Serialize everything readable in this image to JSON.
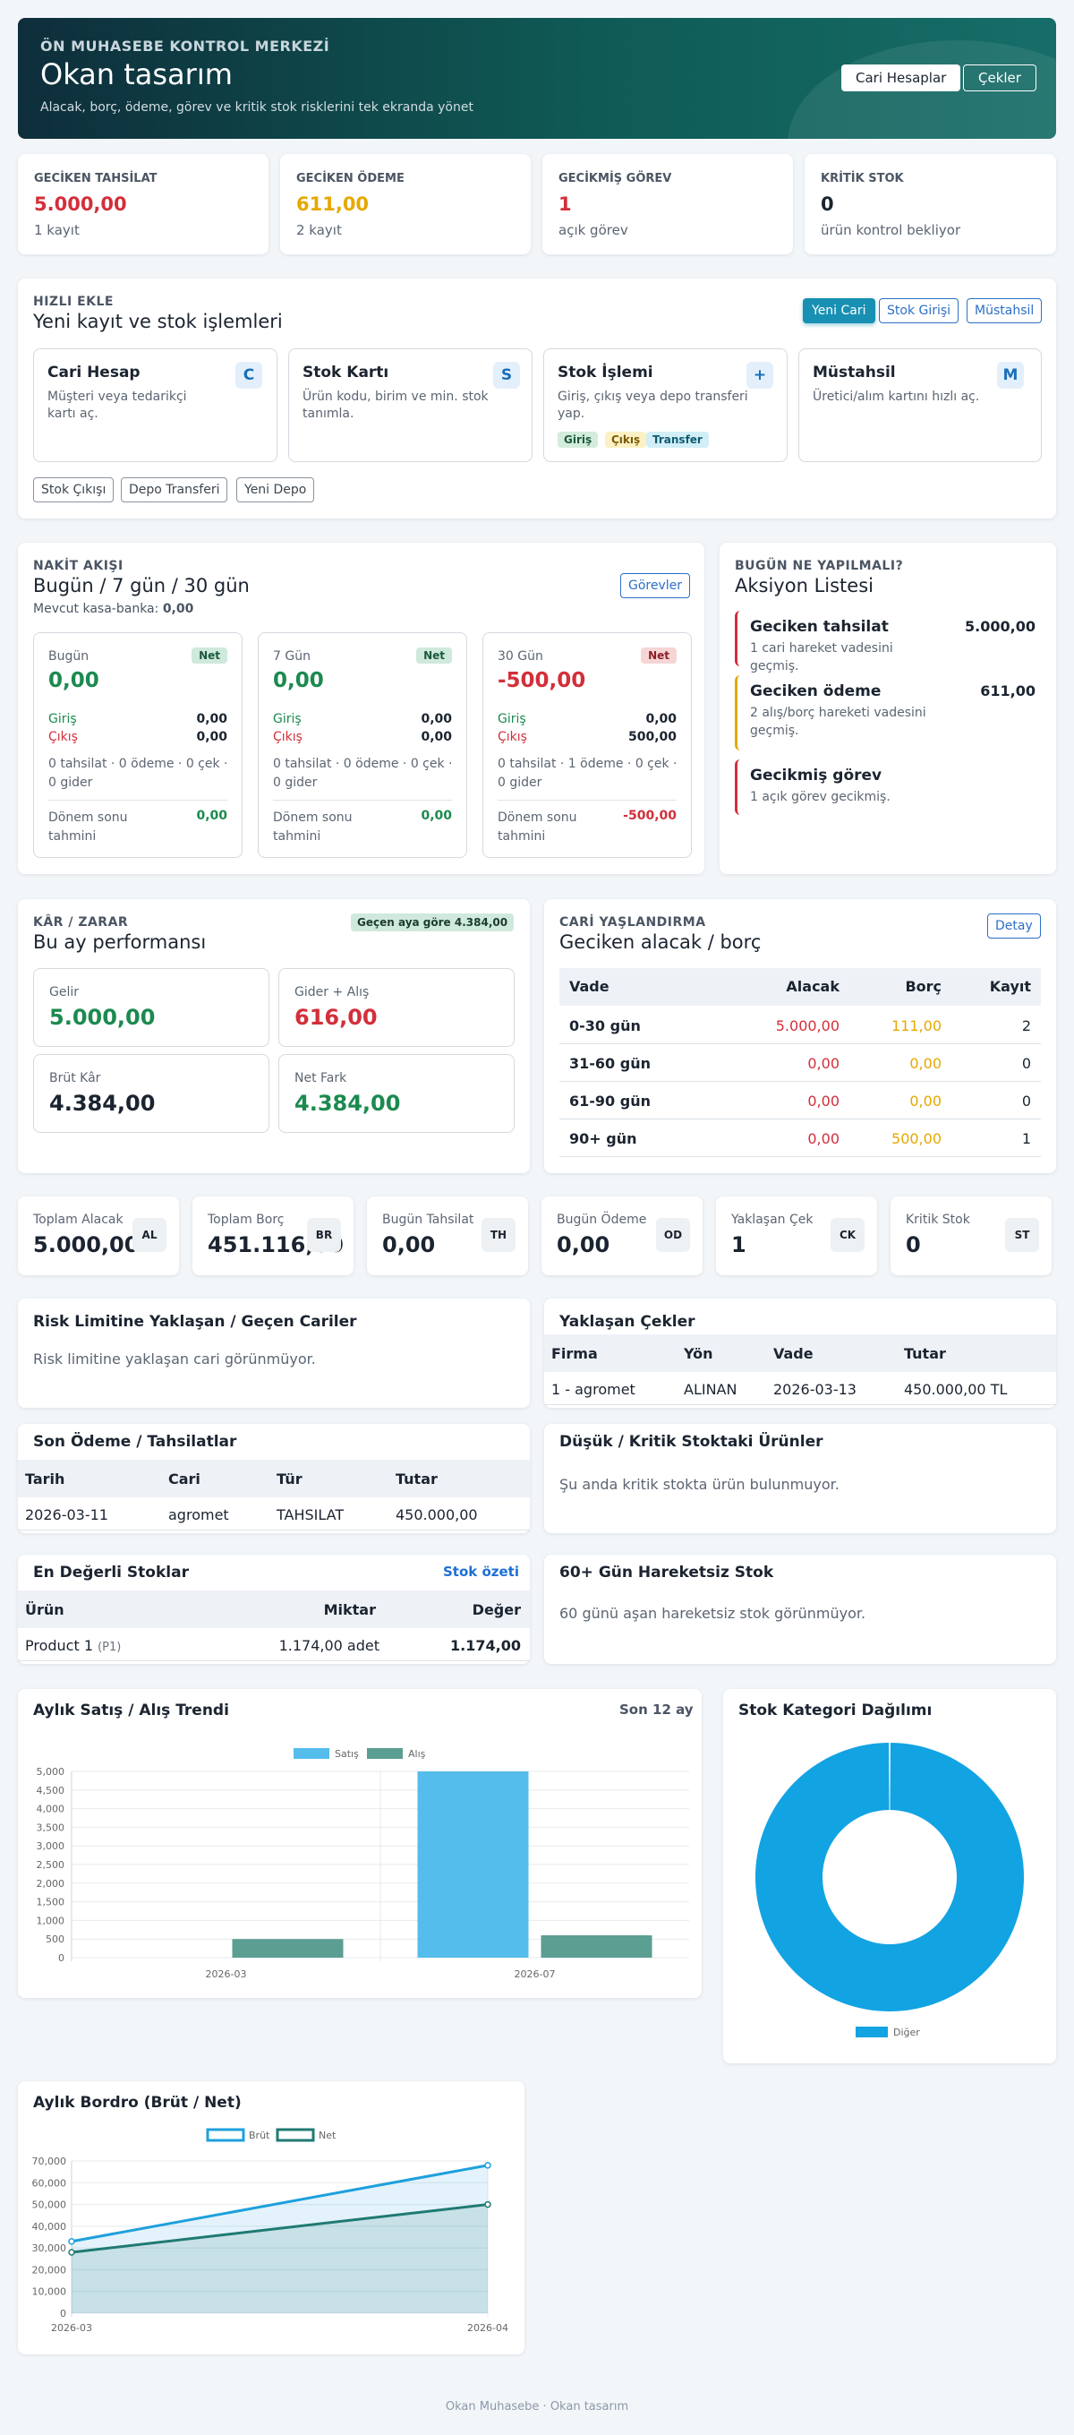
{
  "hero": {
    "kicker": "ÖN MUHASEBE KONTROL MERKEZİ",
    "title": "Okan tasarım",
    "subtitle": "Alacak, borç, ödeme, görev ve kritik stok risklerini tek ekranda yönet",
    "btn_accounts": "Cari Hesaplar",
    "btn_checks": "Çekler"
  },
  "alerts": [
    {
      "label": "GECİKEN TAHSİLAT",
      "value": "5.000,00",
      "sub": "1 kayıt"
    },
    {
      "label": "GECİKEN ÖDEME",
      "value": "611,00",
      "sub": "2 kayıt"
    },
    {
      "label": "GECİKMİŞ GÖREV",
      "value": "1",
      "sub": "açık görev"
    },
    {
      "label": "KRİTİK STOK",
      "value": "0",
      "sub": "ürün kontrol bekliyor"
    }
  ],
  "quick": {
    "kicker": "HIZLI EKLE",
    "title": "Yeni kayıt ve stok işlemleri",
    "btn_new_account": "Yeni Cari",
    "btn_stock_in": "Stok Girişi",
    "btn_producer": "Müstahsil",
    "cards": [
      {
        "title": "Cari Hesap",
        "desc": "Müşteri veya tedarikçi kartı aç.",
        "badge": "C"
      },
      {
        "title": "Stok Kartı",
        "desc": "Ürün kodu, birim ve min. stok tanımla.",
        "badge": "S"
      },
      {
        "title": "Stok İşlemi",
        "desc": "Giriş, çıkış veya depo transferi yap.",
        "badge": "+"
      },
      {
        "title": "Müstahsil",
        "desc": "Üretici/alım kartını hızlı aç.",
        "badge": "M"
      }
    ],
    "tags": [
      "Giriş",
      "Çıkış",
      "Transfer"
    ],
    "btn_stock_out": "Stok Çıkışı",
    "btn_transfer": "Depo Transferi",
    "btn_new_depot": "Yeni Depo"
  },
  "cash": {
    "kicker": "NAKİT AKIŞI",
    "title": "Bugün / 7 gün / 30 gün",
    "balance_label": "Mevcut kasa-banka:",
    "balance_value": "0,00",
    "btn_tasks": "Görevler",
    "in_label": "Giriş",
    "out_label": "Çıkış",
    "forecast_label": "Dönem sonu tahmini",
    "net_label": "Net",
    "periods": [
      {
        "name": "Bugün",
        "net": "0,00",
        "in": "0,00",
        "out": "0,00",
        "detail": "0 tahsilat · 0 ödeme · 0 çek · 0 gider",
        "forecast": "0,00"
      },
      {
        "name": "7 Gün",
        "net": "0,00",
        "in": "0,00",
        "out": "0,00",
        "detail": "0 tahsilat · 0 ödeme · 0 çek · 0 gider",
        "forecast": "0,00"
      },
      {
        "name": "30 Gün",
        "net": "-500,00",
        "in": "0,00",
        "out": "500,00",
        "detail": "0 tahsilat · 1 ödeme · 0 çek · 0 gider",
        "forecast": "-500,00"
      }
    ]
  },
  "actions": {
    "kicker": "BUGÜN NE YAPILMALI?",
    "title": "Aksiyon Listesi",
    "items": [
      {
        "title": "Geciken tahsilat",
        "desc": "1 cari hareket vadesini geçmiş.",
        "amount": "5.000,00",
        "color": "#d32f3a"
      },
      {
        "title": "Geciken ödeme",
        "desc": "2 alış/borç hareketi vadesini geçmiş.",
        "amount": "611,00",
        "color": "#e6a800"
      },
      {
        "title": "Gecikmiş görev",
        "desc": "1 açık görev gecikmiş.",
        "amount": "",
        "color": "#d32f3a"
      }
    ]
  },
  "pnl": {
    "kicker": "KÂR / ZARAR",
    "title": "Bu ay performansı",
    "badge": "Geçen aya göre 4.384,00",
    "boxes": [
      {
        "label": "Gelir",
        "value": "5.000,00"
      },
      {
        "label": "Gider + Alış",
        "value": "616,00"
      },
      {
        "label": "Brüt Kâr",
        "value": "4.384,00"
      },
      {
        "label": "Net Fark",
        "value": "4.384,00"
      }
    ]
  },
  "aging": {
    "kicker": "CARİ YAŞLANDIRMA",
    "title": "Geciken alacak / borç",
    "btn_detail": "Detay",
    "headers": [
      "Vade",
      "Alacak",
      "Borç",
      "Kayıt"
    ],
    "rows": [
      [
        "0-30 gün",
        "5.000,00",
        "111,00",
        "2"
      ],
      [
        "31-60 gün",
        "0,00",
        "0,00",
        "0"
      ],
      [
        "61-90 gün",
        "0,00",
        "0,00",
        "0"
      ],
      [
        "90+ gün",
        "0,00",
        "500,00",
        "1"
      ]
    ]
  },
  "stats": [
    {
      "label": "Toplam Alacak",
      "value": "5.000,00",
      "code": "AL"
    },
    {
      "label": "Toplam Borç",
      "value": "451.116,00",
      "code": "BR"
    },
    {
      "label": "Bugün Tahsilat",
      "value": "0,00",
      "code": "TH"
    },
    {
      "label": "Bugün Ödeme",
      "value": "0,00",
      "code": "OD"
    },
    {
      "label": "Yaklaşan Çek",
      "value": "1",
      "code": "CK"
    },
    {
      "label": "Kritik Stok",
      "value": "0",
      "code": "ST"
    }
  ],
  "risk": {
    "title": "Risk Limitine Yaklaşan / Geçen Cariler",
    "empty": "Risk limitine yaklaşan cari görünmüyor."
  },
  "checks": {
    "title": "Yaklaşan Çekler",
    "headers": [
      "Firma",
      "Yön",
      "Vade",
      "Tutar"
    ],
    "rows": [
      [
        "1 - agromet",
        "ALINAN",
        "2026-03-13",
        "450.000,00 TL"
      ]
    ]
  },
  "payments": {
    "title": "Son Ödeme / Tahsilatlar",
    "headers": [
      "Tarih",
      "Cari",
      "Tür",
      "Tutar"
    ],
    "rows": [
      [
        "2026-03-11",
        "agromet",
        "TAHSILAT",
        "450.000,00"
      ]
    ]
  },
  "lowstock": {
    "title": "Düşük / Kritik Stoktaki Ürünler",
    "empty": "Şu anda kritik stokta ürün bulunmuyor."
  },
  "valuable": {
    "title": "En Değerli Stoklar",
    "link": "Stok özeti",
    "headers": [
      "Ürün",
      "Miktar",
      "Değer"
    ],
    "rows": [
      {
        "name": "Product 1",
        "code": "(P1)",
        "qty": "1.174,00 adet",
        "value": "1.174,00"
      }
    ]
  },
  "idle": {
    "title": "60+ Gün Hareketsiz Stok",
    "empty": "60 günü aşan hareketsiz stok görünmüyor."
  },
  "trend": {
    "title": "Aylık Satış / Alış Trendi",
    "period": "Son 12 ay"
  },
  "category": {
    "title": "Stok Kategori Dağılımı"
  },
  "payroll": {
    "title": "Aylık Bordro (Brüt / Net)"
  },
  "footer": "Okan Muhasebe · Okan tasarım",
  "chart_data": [
    {
      "type": "bar",
      "title": "",
      "categories": [
        "2026-03",
        "2026-07"
      ],
      "series": [
        {
          "name": "Satış",
          "values": [
            0,
            5000
          ],
          "color": "#55bdeb"
        },
        {
          "name": "Alış",
          "values": [
            500,
            600
          ],
          "color": "#5b9e92"
        }
      ],
      "ylim": [
        0,
        5000
      ],
      "yticks": [
        "0",
        "500",
        "1,000",
        "1,500",
        "2,000",
        "2,500",
        "3,000",
        "3,500",
        "4,000",
        "4,500",
        "5,000"
      ],
      "legend": "top-center"
    },
    {
      "type": "pie",
      "title": "",
      "categories": [
        "Diğer"
      ],
      "values": [
        100
      ],
      "colors": [
        "#12a3e3"
      ],
      "legend": "bottom-center"
    },
    {
      "type": "area",
      "title": "",
      "categories": [
        "2026-03",
        "2026-04"
      ],
      "series": [
        {
          "name": "Brüt",
          "values": [
            33000,
            68000
          ],
          "color": "#1ea0dc"
        },
        {
          "name": "Net",
          "values": [
            28000,
            50000
          ],
          "color": "#1f7a73"
        }
      ],
      "ylim": [
        0,
        70000
      ],
      "yticks": [
        "0",
        "10,000",
        "20,000",
        "30,000",
        "40,000",
        "50,000",
        "60,000",
        "70,000"
      ],
      "legend": "top-center"
    }
  ]
}
